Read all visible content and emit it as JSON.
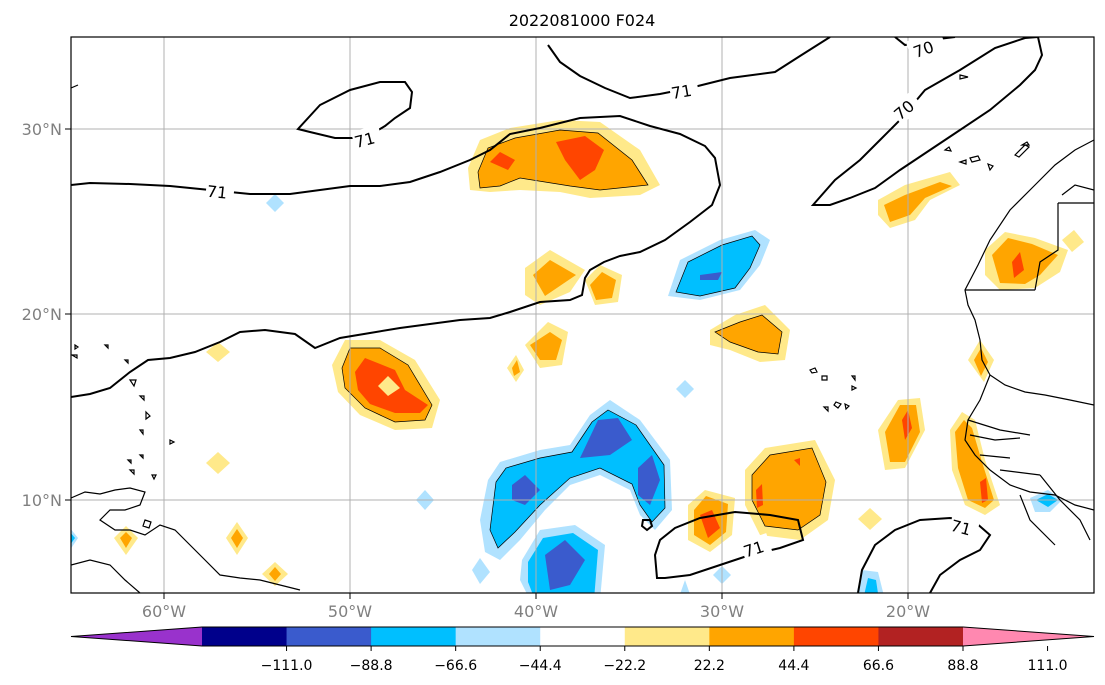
{
  "title": "2022081000 F024",
  "lon_ticks": [
    "60°W",
    "50°W",
    "40°W",
    "30°W",
    "20°W"
  ],
  "lat_ticks": [
    "30°N",
    "20°N",
    "10°N"
  ],
  "contour_labels": [
    "70",
    "70",
    "71",
    "71",
    "71",
    "71",
    "71"
  ],
  "colorbar": {
    "ticks": [
      "−111.0",
      "−88.8",
      "−66.6",
      "−44.4",
      "−22.2",
      "22.2",
      "44.4",
      "66.6",
      "88.8",
      "111.0"
    ],
    "colors": [
      "#9932cc",
      "#00008b",
      "#3a5bcd",
      "#00bfff",
      "#b0e2ff",
      "#ffffff",
      "#ffe98a",
      "#ffa500",
      "#ff4500",
      "#b22222",
      "#ff88b0"
    ]
  },
  "colors": {
    "neg_light": "#b0e2ff",
    "neg_mid": "#00bfff",
    "neg_dark": "#3a5bcd",
    "pos_light": "#ffe98a",
    "pos_mid": "#ffa500",
    "pos_dark": "#ff4500"
  }
}
